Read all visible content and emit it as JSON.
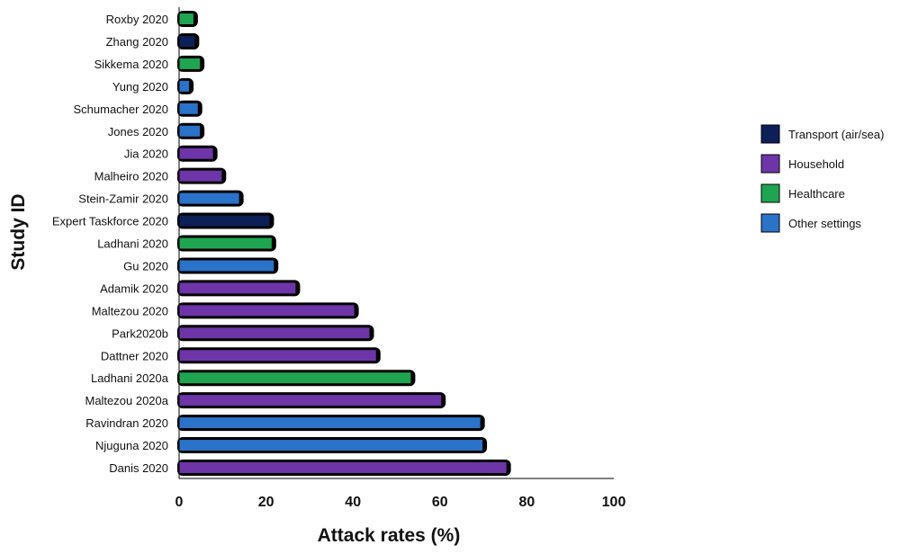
{
  "chart_data": {
    "type": "bar",
    "orientation": "horizontal",
    "xlabel": "Attack rates (%)",
    "ylabel": "Study ID",
    "xlim": [
      0,
      100
    ],
    "xticks": [
      0,
      20,
      40,
      60,
      80,
      100
    ],
    "grid": false,
    "legend_position": "right",
    "legend": [
      {
        "key": "transport",
        "name": "Transport (air/sea)",
        "color": "#0d1f57"
      },
      {
        "key": "household",
        "name": "Household",
        "color": "#6d35a8"
      },
      {
        "key": "healthcare",
        "name": "Healthcare",
        "color": "#1fa551"
      },
      {
        "key": "other",
        "name": "Other settings",
        "color": "#2b72c9"
      }
    ],
    "bars": [
      {
        "study": "Roxby 2020",
        "value": 3.5,
        "setting": "healthcare"
      },
      {
        "study": "Zhang 2020",
        "value": 3.8,
        "setting": "transport"
      },
      {
        "study": "Sikkema 2020",
        "value": 5,
        "setting": "healthcare"
      },
      {
        "study": "Yung 2020",
        "value": 2.5,
        "setting": "other"
      },
      {
        "study": "Schumacher 2020",
        "value": 4.5,
        "setting": "other"
      },
      {
        "study": "Jones 2020",
        "value": 5,
        "setting": "other"
      },
      {
        "study": "Jia 2020",
        "value": 8,
        "setting": "household"
      },
      {
        "study": "Malheiro 2020",
        "value": 10,
        "setting": "household"
      },
      {
        "study": "Stein-Zamir 2020",
        "value": 14,
        "setting": "other"
      },
      {
        "study": "Expert Taskforce 2020",
        "value": 21,
        "setting": "transport"
      },
      {
        "study": "Ladhani 2020",
        "value": 21.5,
        "setting": "healthcare"
      },
      {
        "study": "Gu 2020",
        "value": 22,
        "setting": "other"
      },
      {
        "study": "Adamik 2020",
        "value": 27,
        "setting": "household"
      },
      {
        "study": "Maltezou 2020",
        "value": 40.5,
        "setting": "household"
      },
      {
        "study": "Park2020b",
        "value": 44,
        "setting": "household"
      },
      {
        "study": "Dattner 2020",
        "value": 45.5,
        "setting": "household"
      },
      {
        "study": "Ladhani 2020a",
        "value": 53.5,
        "setting": "healthcare"
      },
      {
        "study": "Maltezou 2020a",
        "value": 60.5,
        "setting": "household"
      },
      {
        "study": "Ravindran 2020",
        "value": 69.5,
        "setting": "other"
      },
      {
        "study": "Njuguna 2020",
        "value": 70,
        "setting": "other"
      },
      {
        "study": "Danis 2020",
        "value": 75.5,
        "setting": "household"
      }
    ]
  }
}
